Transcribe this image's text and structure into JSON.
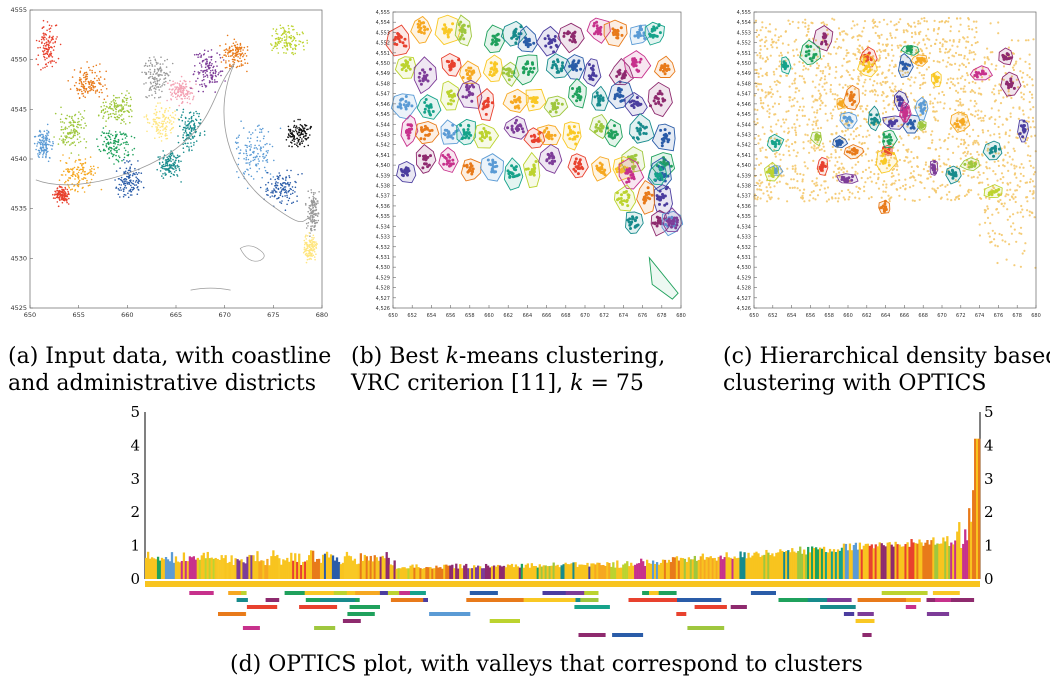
{
  "colors": {
    "palette": [
      "#e8412e",
      "#f6a821",
      "#f9c824",
      "#9fc73e",
      "#1fa15c",
      "#178b8c",
      "#2a5ca8",
      "#4b3d9f",
      "#8e2a6e",
      "#c7318c",
      "#e87a1a",
      "#5b9bd5",
      "#16a38a",
      "#bcd32f",
      "#7d3c98"
    ],
    "optics_main": "#f8c41f",
    "hull_noise": "#f4c86b"
  },
  "panels": [
    {
      "id": "a",
      "caption": [
        "(a) Input data, with coastline",
        "and administrative districts"
      ],
      "chart_data": {
        "type": "scatter",
        "xlim": [
          650,
          680
        ],
        "ylim": [
          4525,
          4555
        ],
        "xticks": [
          "650",
          "655",
          "660",
          "665",
          "670",
          "675",
          "680"
        ],
        "yticks": [
          "4525",
          "4530",
          "4535",
          "4540",
          "4545",
          "4550",
          "4555"
        ]
      }
    },
    {
      "id": "b",
      "caption": [
        "(b) Best k-means clustering,",
        "VRC criterion [11], k = 75"
      ],
      "chart_data": {
        "type": "scatter",
        "xlim": [
          650,
          680
        ],
        "ylim": [
          4526,
          4555
        ],
        "clusters": 75,
        "xticks": [
          "650",
          "652",
          "654",
          "656",
          "658",
          "660",
          "662",
          "664",
          "666",
          "668",
          "670",
          "672",
          "674",
          "676",
          "678",
          "680"
        ],
        "yticks": [
          "4,526",
          "4,527",
          "4,528",
          "4,529",
          "4,530",
          "4,531",
          "4,532",
          "4,533",
          "4,534",
          "4,535",
          "4,536",
          "4,537",
          "4,538",
          "4,539",
          "4,540",
          "4,541",
          "4,542",
          "4,543",
          "4,544",
          "4,545",
          "4,546",
          "4,547",
          "4,548",
          "4,549",
          "4,550",
          "4,551",
          "4,552",
          "4,553",
          "4,554",
          "4,555"
        ]
      }
    },
    {
      "id": "c",
      "caption": [
        "(c) Hierarchical density based",
        "clustering with OPTICS"
      ],
      "chart_data": {
        "type": "scatter",
        "xlim": [
          650,
          680
        ],
        "ylim": [
          4526,
          4555
        ],
        "xticks": [
          "650",
          "652",
          "654",
          "656",
          "658",
          "660",
          "662",
          "664",
          "666",
          "668",
          "670",
          "672",
          "674",
          "676",
          "678",
          "680"
        ],
        "yticks": [
          "4,526",
          "4,527",
          "4,528",
          "4,529",
          "4,530",
          "4,531",
          "4,532",
          "4,533",
          "4,534",
          "4,535",
          "4,536",
          "4,537",
          "4,538",
          "4,539",
          "4,540",
          "4,541",
          "4,542",
          "4,543",
          "4,544",
          "4,545",
          "4,546",
          "4,547",
          "4,548",
          "4,549",
          "4,550",
          "4,551",
          "4,552",
          "4,553",
          "4,554",
          "4,555"
        ]
      }
    },
    {
      "id": "d",
      "caption": [
        "(d) OPTICS plot, with valleys that correspond to clusters"
      ],
      "chart_data": {
        "type": "area",
        "ylim": [
          0,
          5
        ],
        "yticks": [
          "0",
          "1",
          "2",
          "3",
          "4",
          "5"
        ]
      }
    }
  ]
}
